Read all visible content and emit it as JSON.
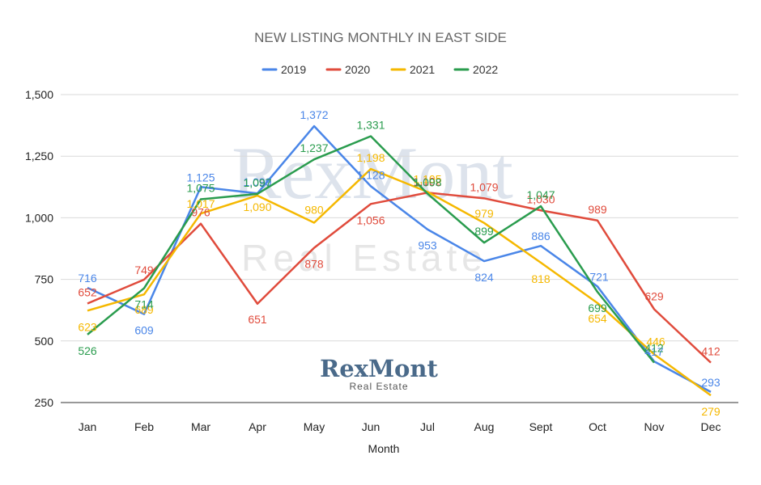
{
  "chart_data": {
    "type": "line",
    "title": "NEW LISTING MONTHLY IN EAST SIDE",
    "xlabel": "Month",
    "ylabel": "",
    "categories": [
      "Jan",
      "Feb",
      "Mar",
      "Apr",
      "May",
      "Jun",
      "Jul",
      "Aug",
      "Sept",
      "Oct",
      "Nov",
      "Dec"
    ],
    "ylim": [
      250,
      1500
    ],
    "yticks": [
      250,
      500,
      750,
      1000,
      1250,
      1500
    ],
    "ytick_labels": [
      "250",
      "500",
      "750",
      "1,000",
      "1,250",
      "1,500"
    ],
    "grid": true,
    "legend_position": "top",
    "series": [
      {
        "name": "2019",
        "color": "#4a86e8",
        "values": [
          716,
          609,
          1125,
          1099,
          1372,
          1128,
          953,
          824,
          886,
          721,
          417,
          293
        ]
      },
      {
        "name": "2020",
        "color": "#e04b3c",
        "values": [
          652,
          749,
          976,
          651,
          878,
          1056,
          1102,
          1079,
          1030,
          989,
          629,
          412
        ]
      },
      {
        "name": "2021",
        "color": "#f5b800",
        "values": [
          623,
          689,
          1017,
          1090,
          980,
          1198,
          1105,
          979,
          818,
          654,
          446,
          279
        ]
      },
      {
        "name": "2022",
        "color": "#2a9c4e",
        "values": [
          526,
          714,
          1075,
          1097,
          1237,
          1331,
          1098,
          899,
          1047,
          699,
          412,
          null
        ]
      }
    ]
  },
  "watermark": {
    "main": "RexMont",
    "sub": "Real Estate"
  },
  "logo": {
    "main": "RexMont",
    "sub": "Real Estate"
  }
}
